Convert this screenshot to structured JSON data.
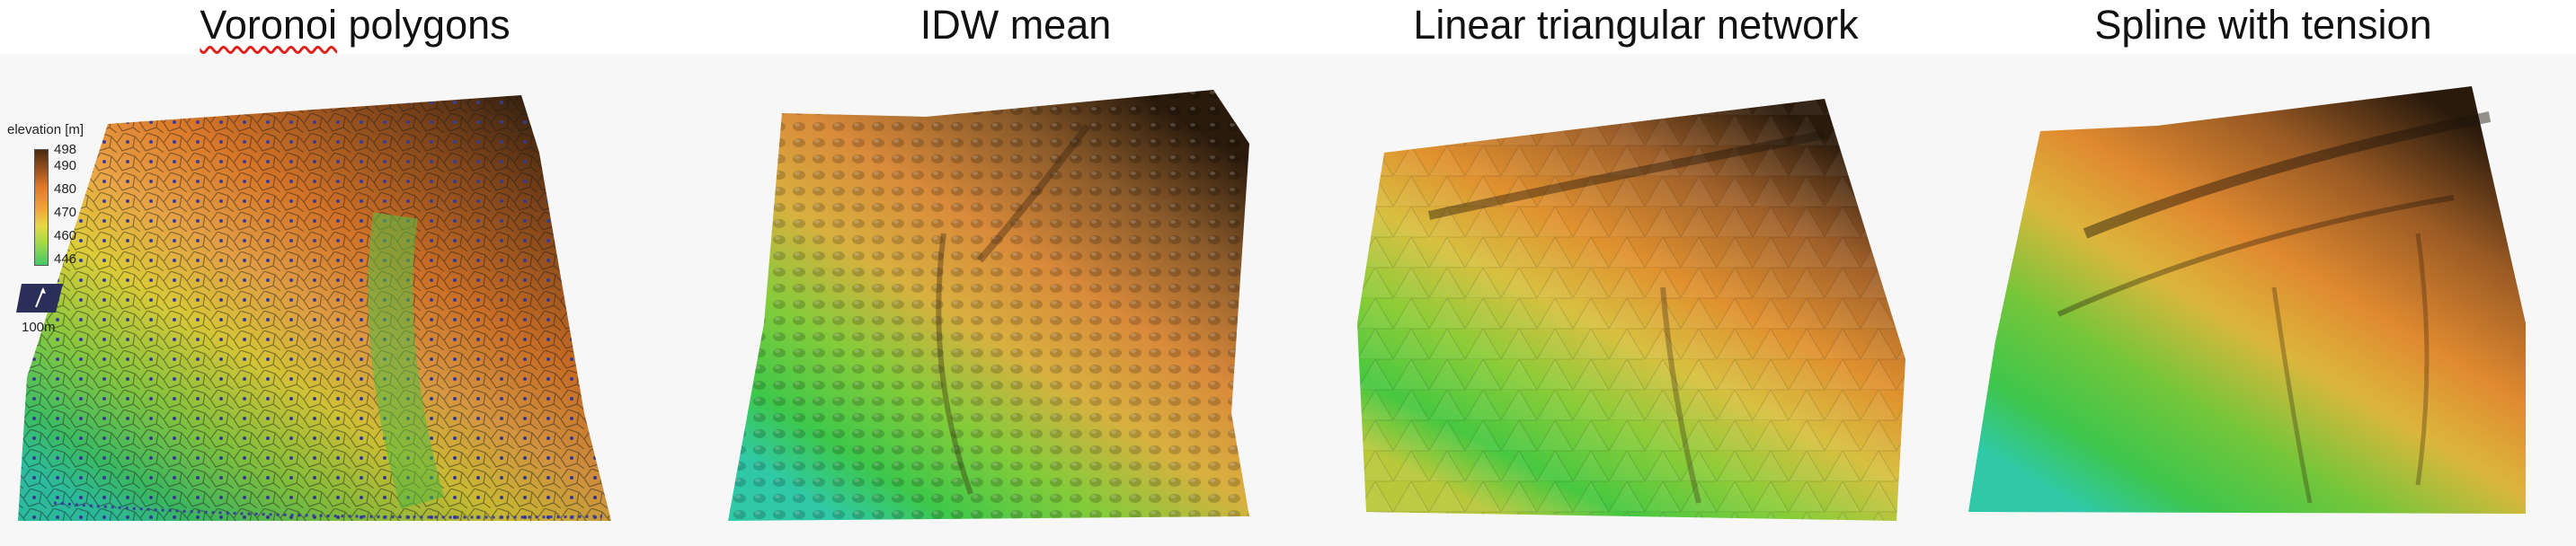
{
  "panels": [
    {
      "title_word1": "Voronoi",
      "title_rest": " polygons"
    },
    {
      "title": "IDW mean"
    },
    {
      "title": "Linear triangular network"
    },
    {
      "title": "Spline with tension"
    }
  ],
  "legend": {
    "title": "elevation [m]",
    "ticks": [
      "498",
      "490",
      "480",
      "470",
      "460",
      "446"
    ],
    "scale_label": "100m"
  },
  "colors": {
    "low": "#2fc9a8",
    "green": "#4cc83c",
    "yellow": "#e3d53a",
    "orange": "#e07a2a",
    "brown": "#6a3a16",
    "dark": "#2a1a0c",
    "points": "#3b3f9c"
  }
}
